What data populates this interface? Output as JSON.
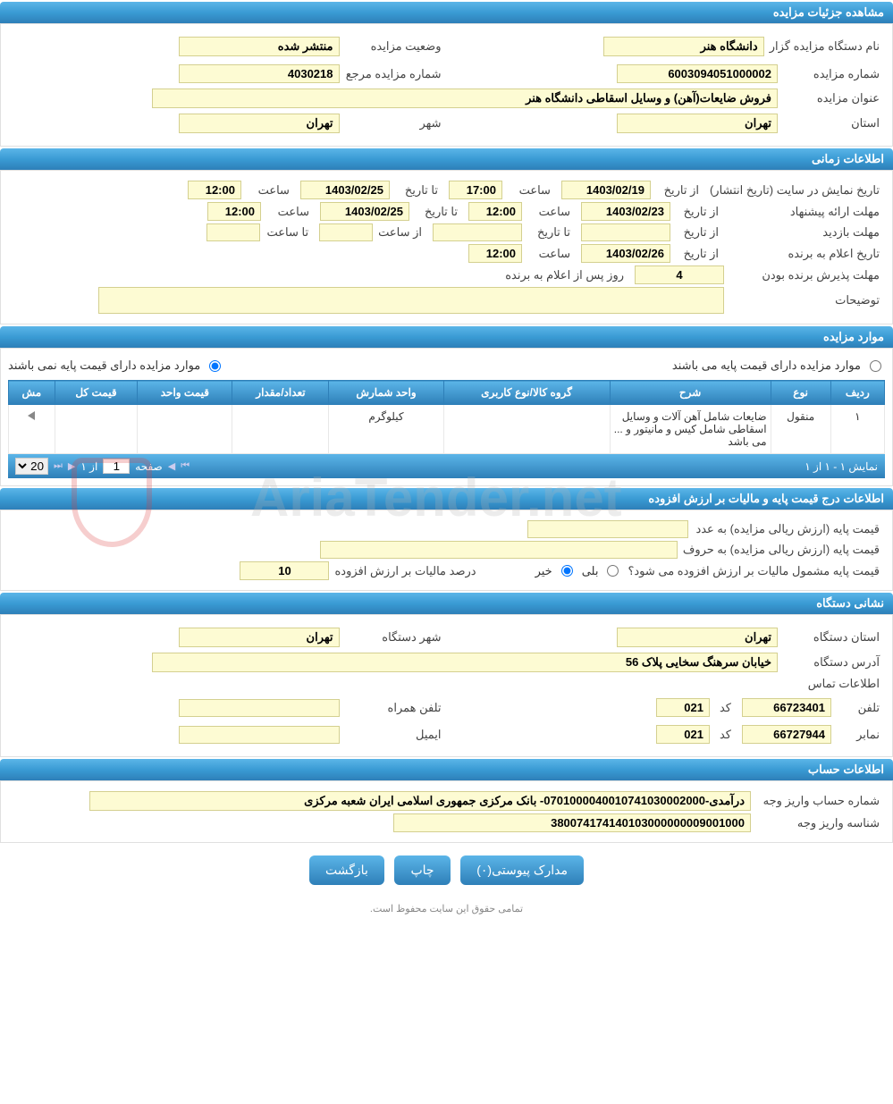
{
  "colors": {
    "header_gradient_top": "#5bb5e8",
    "header_gradient_bottom": "#2e7fb8",
    "field_bg": "#fdfbd3",
    "field_border": "#d4d090",
    "text": "#333333",
    "white": "#ffffff"
  },
  "sections": {
    "details": {
      "title": "مشاهده جزئیات مزایده",
      "org_label": "نام دستگاه مزایده گزار",
      "org_value": "دانشگاه هنر",
      "status_label": "وضعیت مزایده",
      "status_value": "منتشر شده",
      "auction_no_label": "شماره مزایده",
      "auction_no_value": "6003094051000002",
      "ref_no_label": "شماره مزایده مرجع",
      "ref_no_value": "4030218",
      "title_label": "عنوان مزایده",
      "title_value": "فروش ضایعات(آهن) و وسایل اسقاطی دانشگاه هنر",
      "province_label": "استان",
      "province_value": "تهران",
      "city_label": "شهر",
      "city_value": "تهران"
    },
    "timing": {
      "title": "اطلاعات زمانی",
      "publish_label": "تاریخ نمایش در سایت (تاریخ انتشار)",
      "from_date_label": "از تاریخ",
      "to_date_label": "تا تاریخ",
      "time_label": "ساعت",
      "from_time_label": "از ساعت",
      "to_time_label": "تا ساعت",
      "publish_from_date": "1403/02/19",
      "publish_from_time": "17:00",
      "publish_to_date": "1403/02/25",
      "publish_to_time": "12:00",
      "bid_label": "مهلت ارائه پیشنهاد",
      "bid_from_date": "1403/02/23",
      "bid_from_time": "12:00",
      "bid_to_date": "1403/02/25",
      "bid_to_time": "12:00",
      "visit_label": "مهلت بازدید",
      "visit_from_date": "",
      "visit_to_date": "",
      "visit_from_time": "",
      "visit_to_time": "",
      "announce_label": "تاریخ اعلام به برنده",
      "announce_date": "1403/02/26",
      "announce_time": "12:00",
      "accept_label": "مهلت پذیرش برنده بودن",
      "accept_days": "4",
      "accept_suffix": "روز پس از اعلام به برنده",
      "desc_label": "توضیحات",
      "desc_value": ""
    },
    "items": {
      "title": "موارد مزایده",
      "radio_has_base": "موارد مزایده دارای قیمت پایه می باشند",
      "radio_no_base": "موارد مزایده دارای قیمت پایه نمی باشند",
      "radio_selected": "no_base",
      "columns": [
        "ردیف",
        "نوع",
        "شرح",
        "گروه کالا/نوع کاربری",
        "واحد شمارش",
        "تعداد/مقدار",
        "قیمت واحد",
        "قیمت کل",
        "مش"
      ],
      "rows": [
        {
          "idx": "١",
          "type": "منقول",
          "desc": "ضایعات شامل آهن آلات و وسایل اسقاطی شامل کیس و مانیتور و ... می باشد",
          "group": "",
          "unit": "کیلوگرم",
          "qty": "",
          "unit_price": "",
          "total": ""
        }
      ],
      "pager": {
        "display": "نمایش ۱ - ۱ از ۱",
        "page_label": "صفحه",
        "page_value": "1",
        "of_label": "از ۱",
        "page_size": "20"
      }
    },
    "price": {
      "title": "اطلاعات درج قیمت پایه و مالیات بر ارزش افزوده",
      "base_num_label": "قیمت پایه (ارزش ریالی مزایده) به عدد",
      "base_num_value": "",
      "base_txt_label": "قیمت پایه (ارزش ریالی مزایده) به حروف",
      "base_txt_value": "",
      "vat_q_label": "قیمت پایه مشمول مالیات بر ارزش افزوده می شود؟",
      "vat_yes": "بلی",
      "vat_no": "خیر",
      "vat_pct_label": "درصد مالیات بر ارزش افزوده",
      "vat_pct_value": "10"
    },
    "address": {
      "title": "نشانی دستگاه",
      "prov_label": "استان دستگاه",
      "prov_value": "تهران",
      "city_label": "شهر دستگاه",
      "city_value": "تهران",
      "addr_label": "آدرس دستگاه",
      "addr_value": "خیابان سرهنگ سخایی پلاک 56",
      "contact_title": "اطلاعات تماس",
      "phone_label": "تلفن",
      "phone_value": "66723401",
      "code_label": "کد",
      "phone_code": "021",
      "mobile_label": "تلفن همراه",
      "mobile_value": "",
      "fax_label": "نمابر",
      "fax_value": "66727944",
      "fax_code": "021",
      "email_label": "ایمیل",
      "email_value": ""
    },
    "account": {
      "title": "اطلاعات حساب",
      "acc_label": "شماره حساب واریز وجه",
      "acc_value": "درآمدی-0701000040010741030002000- بانک مرکزی جمهوری اسلامی ایران شعبه مرکزی",
      "shenase_label": "شناسه واریز وجه",
      "shenase_value": "380074174140103000000009001000"
    }
  },
  "buttons": {
    "attachments": "مدارک پیوستی(۰)",
    "print": "چاپ",
    "back": "بازگشت"
  },
  "footer": "تمامی حقوق این سایت محفوظ است.",
  "watermark": "AriaTender.net"
}
